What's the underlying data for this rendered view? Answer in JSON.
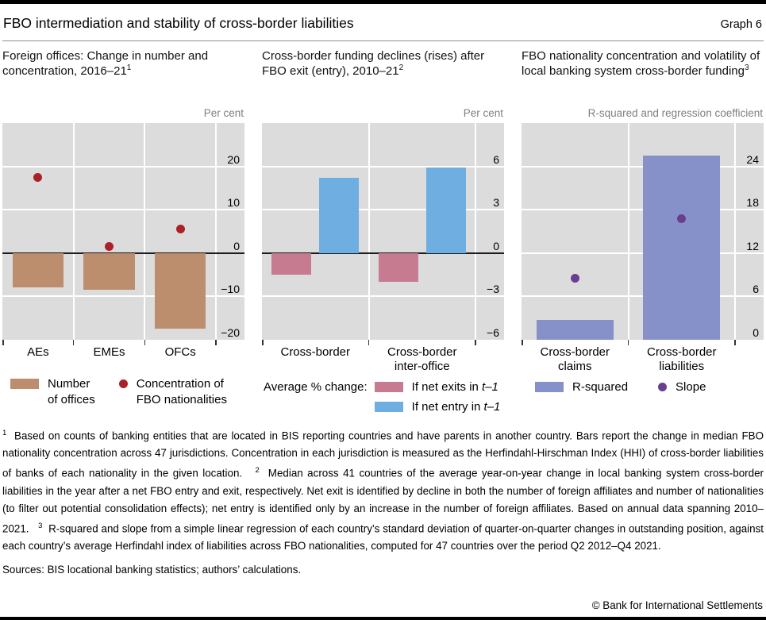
{
  "header": {
    "title": "FBO intermediation and stability of cross-border liabilities",
    "graph_label": "Graph 6"
  },
  "colors": {
    "plot_background": "#dcdcdc",
    "gridline": "#ffffff",
    "zero_line": "#1c1c1c",
    "tan_bar": "#bd8e6e",
    "red_dot": "#aa2127",
    "pink_bar": "#c67b90",
    "blue_bar": "#6faee0",
    "purple_bar": "#8690c9",
    "purple_dot": "#6a3e8e",
    "unit_label_gray": "#7f7f7f"
  },
  "chart_data": [
    {
      "type": "bar",
      "title": "Foreign offices: Change in number and concentration, 2016–21",
      "title_sup": "1",
      "unit_label": "Per cent",
      "categories": [
        "AEs",
        "EMEs",
        "OFCs"
      ],
      "ylim": [
        -20,
        30
      ],
      "yticks": [
        20,
        10,
        0,
        -10,
        -20
      ],
      "zero_line": true,
      "grid": true,
      "legend_position": "bottom",
      "series": [
        {
          "name": "Number of offices",
          "kind": "bar",
          "color": "#bd8e6e",
          "values": [
            -8,
            -8.5,
            -17.5
          ]
        },
        {
          "name": "Concentration of FBO nationalities",
          "kind": "dot",
          "color": "#aa2127",
          "values": [
            17.5,
            1.5,
            5.5
          ]
        }
      ],
      "legend": [
        {
          "marker": "bar",
          "color": "#bd8e6e",
          "label": "Number\nof offices"
        },
        {
          "marker": "dot",
          "color": "#aa2127",
          "label": "Concentration of\nFBO nationalities"
        }
      ]
    },
    {
      "type": "bar",
      "title": "Cross-border funding declines (rises) after FBO exit (entry), 2010–21",
      "title_sup": "2",
      "unit_label": "Per cent",
      "categories": [
        "Cross-border",
        "Cross-border\ninter-office"
      ],
      "ylim": [
        -6,
        9
      ],
      "yticks": [
        6,
        3,
        0,
        -3,
        -6
      ],
      "zero_line": true,
      "grid": true,
      "legend_position": "bottom",
      "legend_prefix": "Average % change:",
      "series": [
        {
          "name": "If net exits in t–1",
          "kind": "bar",
          "color": "#c67b90",
          "values": [
            -1.5,
            -2
          ]
        },
        {
          "name": "If net entry in t–1",
          "kind": "bar",
          "color": "#6faee0",
          "values": [
            5.2,
            5.9
          ]
        }
      ],
      "legend": [
        {
          "marker": "bar",
          "color": "#c67b90",
          "label": "If net exits in ",
          "label_italic": "t–1"
        },
        {
          "marker": "bar",
          "color": "#6faee0",
          "label": "If net entry in ",
          "label_italic": "t–1"
        }
      ]
    },
    {
      "type": "bar",
      "title": "FBO nationality concentration and volatility of local banking system cross-border funding",
      "title_sup": "3",
      "unit_label": "R-squared and regression coefficient",
      "categories": [
        "Cross-border\nclaims",
        "Cross-border\nliabilities"
      ],
      "ylim": [
        0,
        30
      ],
      "yticks": [
        24,
        18,
        12,
        6,
        0
      ],
      "zero_line": false,
      "grid": true,
      "legend_position": "bottom",
      "series": [
        {
          "name": "R-squared",
          "kind": "bar",
          "color": "#8690c9",
          "values": [
            2.8,
            25.5
          ]
        },
        {
          "name": "Slope",
          "kind": "dot",
          "color": "#6a3e8e",
          "values": [
            8.5,
            16.8
          ]
        }
      ],
      "legend": [
        {
          "marker": "bar",
          "color": "#8690c9",
          "label": "R-squared"
        },
        {
          "marker": "dot",
          "color": "#6a3e8e",
          "label": "Slope"
        }
      ]
    }
  ],
  "footnotes": [
    {
      "marker": "1",
      "text": "Based on counts of banking entities that are located in BIS reporting countries and have parents in another country. Bars report the change in median FBO nationality concentration across 47 jurisdictions. Concentration in each jurisdiction is measured as the Herfindahl-Hirschman Index (HHI) of cross-border liabilities of banks of each nationality in the given location."
    },
    {
      "marker": "2",
      "text": "Median across 41 countries of the average year-on-year change in local banking system cross-border liabilities in the year after a net FBO entry and exit, respectively. Net exit is identified by decline in both the number of foreign affiliates and number of nationalities (to filter out potential consolidation effects); net entry is identified only by an increase in the number of foreign affiliates. Based on annual data spanning 2010–2021."
    },
    {
      "marker": "3",
      "text": "R-squared and slope from a simple linear regression of each country’s standard deviation of quarter-on-quarter changes in outstanding position, against each country’s average Herfindahl index of liabilities across FBO nationalities, computed for 47 countries over the period Q2 2012–Q4 2021."
    }
  ],
  "sources": "Sources: BIS locational banking statistics; authors’ calculations.",
  "copyright": "© Bank for International Settlements"
}
